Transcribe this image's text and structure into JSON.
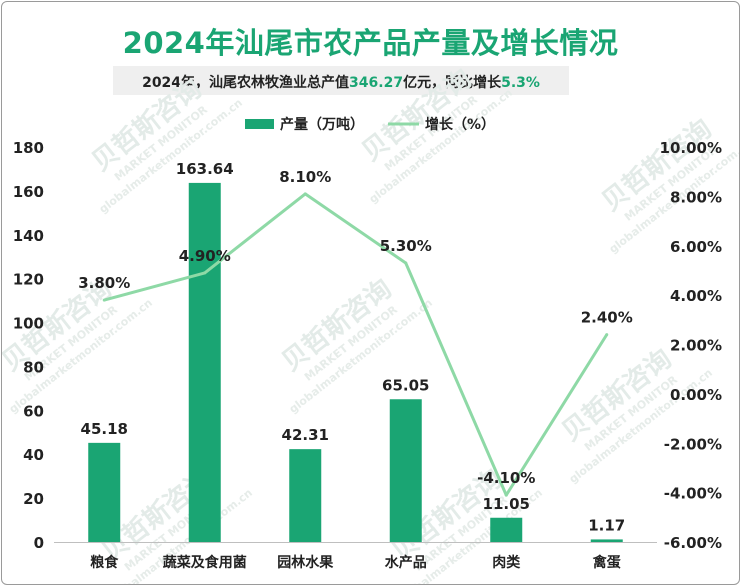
{
  "header": {
    "title": "2024年汕尾市农产品产量及增长情况",
    "subtitle_prefix": "2024年，汕尾农林牧渔业总产值",
    "subtitle_value": "346.27",
    "subtitle_mid": "亿元，同比增长",
    "subtitle_growth": "5.3%"
  },
  "watermark": {
    "brand": "贝哲斯咨询",
    "brand_en": "MARKET MONITOR",
    "site": "globalmarketmonitor.com.cn"
  },
  "colors": {
    "bar": "#1aa573",
    "line": "#8ed9a6",
    "title": "#1aa573"
  },
  "chart_data": {
    "type": "bar",
    "categories": [
      "粮食",
      "蔬菜及食用菌",
      "园林水果",
      "水产品",
      "肉类",
      "禽蛋"
    ],
    "series": [
      {
        "name": "产量（万吨）",
        "type": "bar",
        "axis": "left",
        "values": [
          45.18,
          163.64,
          42.31,
          65.05,
          11.05,
          1.17
        ],
        "labels": [
          "45.18",
          "163.64",
          "42.31",
          "65.05",
          "11.05",
          "1.17"
        ]
      },
      {
        "name": "增长（%）",
        "type": "line",
        "axis": "right",
        "values": [
          3.8,
          4.9,
          8.1,
          5.3,
          -4.1,
          2.4
        ],
        "labels": [
          "3.80%",
          "4.90%",
          "8.10%",
          "5.30%",
          "-4.10%",
          "2.40%"
        ]
      }
    ],
    "y_left": {
      "lim": [
        0,
        180
      ],
      "ticks": [
        0,
        20,
        40,
        60,
        80,
        100,
        120,
        140,
        160,
        180
      ],
      "tick_labels": [
        "0",
        "20",
        "40",
        "60",
        "80",
        "100",
        "120",
        "140",
        "160",
        "180"
      ]
    },
    "y_right": {
      "lim": [
        -6,
        10
      ],
      "ticks": [
        -6,
        -4,
        -2,
        0,
        2,
        4,
        6,
        8,
        10
      ],
      "tick_labels": [
        "-6.00%",
        "-4.00%",
        "-2.00%",
        "0.00%",
        "2.00%",
        "4.00%",
        "6.00%",
        "8.00%",
        "10.00%"
      ]
    },
    "grid": false,
    "legend_position": "top-center"
  }
}
